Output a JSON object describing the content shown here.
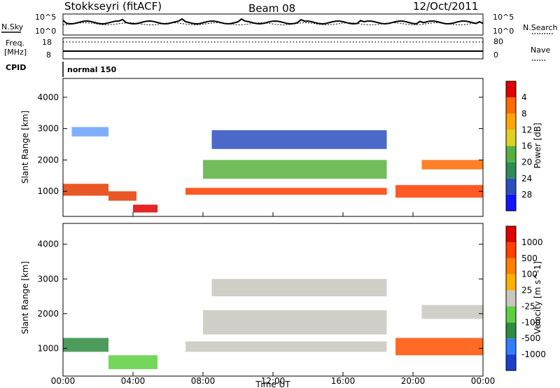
{
  "header": {
    "station": "Stokkseyri (fitACF)",
    "beam": "Beam 08",
    "date": "12/Oct/2011"
  },
  "noise_panel": {
    "left_label": "N.Sky",
    "right_label": "N.Search",
    "left_ticks": [
      "10^5",
      "10^0"
    ],
    "right_ticks": [
      "10^5",
      "10^0"
    ]
  },
  "freq_panel": {
    "left_label_top": "Freq.",
    "left_label_bottom": "[MHz]",
    "right_label": "Nave",
    "left_ticks": [
      "18",
      "8"
    ],
    "right_ticks": [
      "80",
      "0"
    ]
  },
  "cpid": {
    "label": "CPID",
    "program": "normal 150"
  },
  "chart_data": [
    {
      "type": "heatmap",
      "parameter": "power",
      "ylabel": "Slant Range [km]",
      "yticks": [
        "1000",
        "2000",
        "3000",
        "4000"
      ],
      "ylim": [
        200,
        4600
      ],
      "xlim": [
        "00:00",
        "24:00"
      ],
      "colorbar": {
        "label": "Power [dB]",
        "ticks": [
          "4",
          "8",
          "12",
          "16",
          "20",
          "24",
          "28"
        ],
        "colors": [
          "#1414ff",
          "#2a4fbf",
          "#2e8b57",
          "#55b040",
          "#e0d020",
          "#ffa500",
          "#ff6a00",
          "#e00000"
        ]
      },
      "bands": [
        {
          "t0": 0.0,
          "t1": 2.6,
          "r": 1050,
          "w": 380,
          "color": "#e63a00"
        },
        {
          "t0": 2.6,
          "t1": 4.2,
          "r": 850,
          "w": 300,
          "color": "#e63a00"
        },
        {
          "t0": 4.0,
          "t1": 5.4,
          "r": 450,
          "w": 250,
          "color": "#e00000"
        },
        {
          "t0": 7.0,
          "t1": 18.5,
          "r": 1000,
          "w": 220,
          "color": "#ff3c00"
        },
        {
          "t0": 8.0,
          "t1": 18.5,
          "r": 1700,
          "w": 600,
          "color": "#5ab040"
        },
        {
          "t0": 19.0,
          "t1": 24.0,
          "r": 1000,
          "w": 400,
          "color": "#ff3c00"
        },
        {
          "t0": 20.5,
          "t1": 24.0,
          "r": 1850,
          "w": 300,
          "color": "#ff6a00"
        },
        {
          "t0": 0.5,
          "t1": 2.6,
          "r": 2900,
          "w": 300,
          "color": "#6aa0ff"
        },
        {
          "t0": 8.5,
          "t1": 18.5,
          "r": 2650,
          "w": 600,
          "color": "#2a4fbf"
        }
      ]
    },
    {
      "type": "heatmap",
      "parameter": "velocity",
      "ylabel": "Slant Range [km]",
      "yticks": [
        "1000",
        "2000",
        "3000",
        "4000"
      ],
      "ylim": [
        200,
        4600
      ],
      "xlim": [
        "00:00",
        "24:00"
      ],
      "xlabel": "Time UT",
      "xticks": [
        "00:00",
        "04:00",
        "08:00",
        "12:00",
        "16:00",
        "20:00",
        "00:00"
      ],
      "colorbar": {
        "label": "Velocity [m s^-1]",
        "ticks": [
          "1000",
          "500",
          "100",
          "25",
          "-25",
          "-100",
          "-500",
          "-1000"
        ],
        "colors": [
          "#1a3fcf",
          "#2f7fff",
          "#2e8b3f",
          "#5ad040",
          "#c8c8c0",
          "#ffb000",
          "#ff8000",
          "#ff4000",
          "#e00000"
        ]
      },
      "bands": [
        {
          "t0": 7.0,
          "t1": 18.5,
          "r": 1050,
          "w": 300,
          "color": "#c8c8c0"
        },
        {
          "t0": 8.0,
          "t1": 18.5,
          "r": 1750,
          "w": 700,
          "color": "#c8c8c0"
        },
        {
          "t0": 8.5,
          "t1": 18.5,
          "r": 2750,
          "w": 500,
          "color": "#c8c8c0"
        },
        {
          "t0": 0.0,
          "t1": 2.6,
          "r": 1100,
          "w": 400,
          "color": "#2e8b3f"
        },
        {
          "t0": 2.6,
          "t1": 5.4,
          "r": 600,
          "w": 400,
          "color": "#5ad040"
        },
        {
          "t0": 19.0,
          "t1": 24.0,
          "r": 1050,
          "w": 500,
          "color": "#ff5000"
        },
        {
          "t0": 20.5,
          "t1": 24.0,
          "r": 2050,
          "w": 400,
          "color": "#c8c8c0"
        }
      ]
    }
  ]
}
